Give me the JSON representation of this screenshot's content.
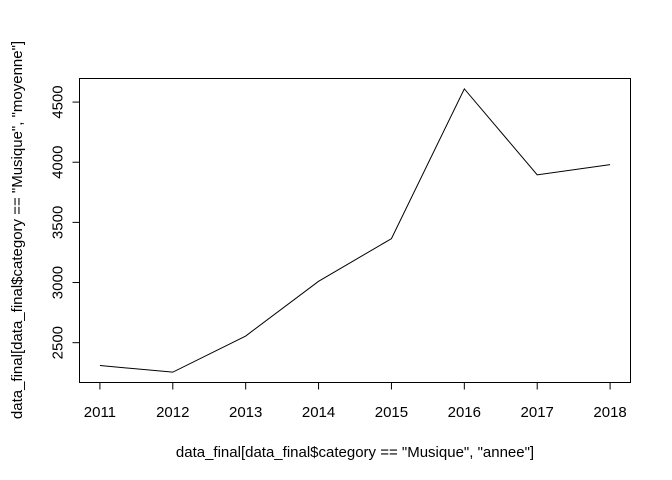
{
  "chart_data": {
    "type": "line",
    "title": "",
    "xlabel": "data_final[data_final$category == \"Musique\", \"annee\"]",
    "ylabel": "data_final[data_final$category == \"Musique\", \"moyenne\"]",
    "x": [
      2011,
      2012,
      2013,
      2014,
      2015,
      2016,
      2017,
      2018
    ],
    "series": [
      {
        "values": [
          2310,
          2255,
          2555,
          3010,
          3365,
          4610,
          3895,
          3980
        ]
      }
    ],
    "xticks": [
      "2011",
      "2012",
      "2013",
      "2014",
      "2015",
      "2016",
      "2017",
      "2018"
    ],
    "yticks": [
      "2500",
      "3000",
      "3500",
      "4000",
      "4500"
    ],
    "xlim": [
      2010.72,
      2018.28
    ],
    "ylim": [
      2169,
      4696
    ],
    "grid": false,
    "line_color": "#000000"
  }
}
